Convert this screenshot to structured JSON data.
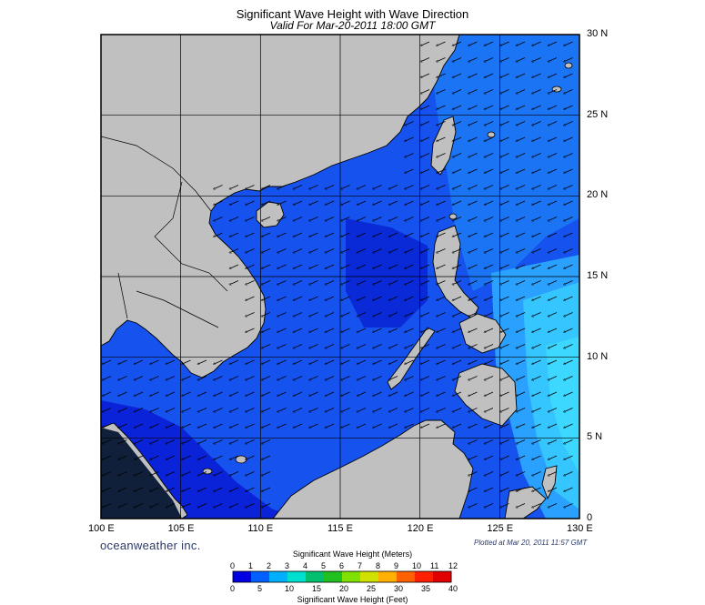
{
  "title": "Significant Wave Height with Wave Direction",
  "subtitle": "Valid For Mar-20-2011 18:00 GMT",
  "brand": "oceanweather inc.",
  "plotted_text": "Plotted at Mar 20, 2011 11:57 GMT",
  "map": {
    "lon_range": [
      100,
      130
    ],
    "lat_range": [
      0,
      30
    ],
    "lon_ticks": [
      "100 E",
      "105 E",
      "110 E",
      "115 E",
      "120 E",
      "125 E",
      "130 E"
    ],
    "lat_ticks": [
      "30 N",
      "25 N",
      "20 N",
      "15 N",
      "10 N",
      "5 N",
      "0"
    ],
    "land_color": "#c0c0c0",
    "wave_direction": "from northeast"
  },
  "colorbar": {
    "title_top": "Significant Wave Height (Meters)",
    "title_bottom": "Significant Wave Height (Feet)",
    "meters": [
      "0",
      "1",
      "2",
      "3",
      "4",
      "5",
      "6",
      "7",
      "8",
      "9",
      "10",
      "11",
      "12"
    ],
    "feet": [
      "0",
      "5",
      "10",
      "15",
      "20",
      "25",
      "30",
      "35",
      "40"
    ],
    "colors": [
      "#0000e0",
      "#0060ff",
      "#00b0ff",
      "#00e0d0",
      "#00c070",
      "#20c020",
      "#80e000",
      "#d0e000",
      "#ffb000",
      "#ff6000",
      "#ff2000",
      "#e00000"
    ]
  },
  "chart_data": {
    "type": "heatmap",
    "title": "Significant Wave Height with Wave Direction",
    "subtitle": "Valid For Mar-20-2011 18:00 GMT",
    "xlim": [
      100,
      130
    ],
    "ylim": [
      0,
      30
    ],
    "xticks": [
      "100 E",
      "105 E",
      "110 E",
      "115 E",
      "120 E",
      "125 E",
      "130 E"
    ],
    "yticks": [
      "30 N",
      "25 N",
      "20 N",
      "15 N",
      "10 N",
      "5 N",
      "0"
    ],
    "colorbar_meters": [
      0,
      12
    ],
    "colorbar_feet": [
      0,
      40
    ],
    "grid": true
  }
}
